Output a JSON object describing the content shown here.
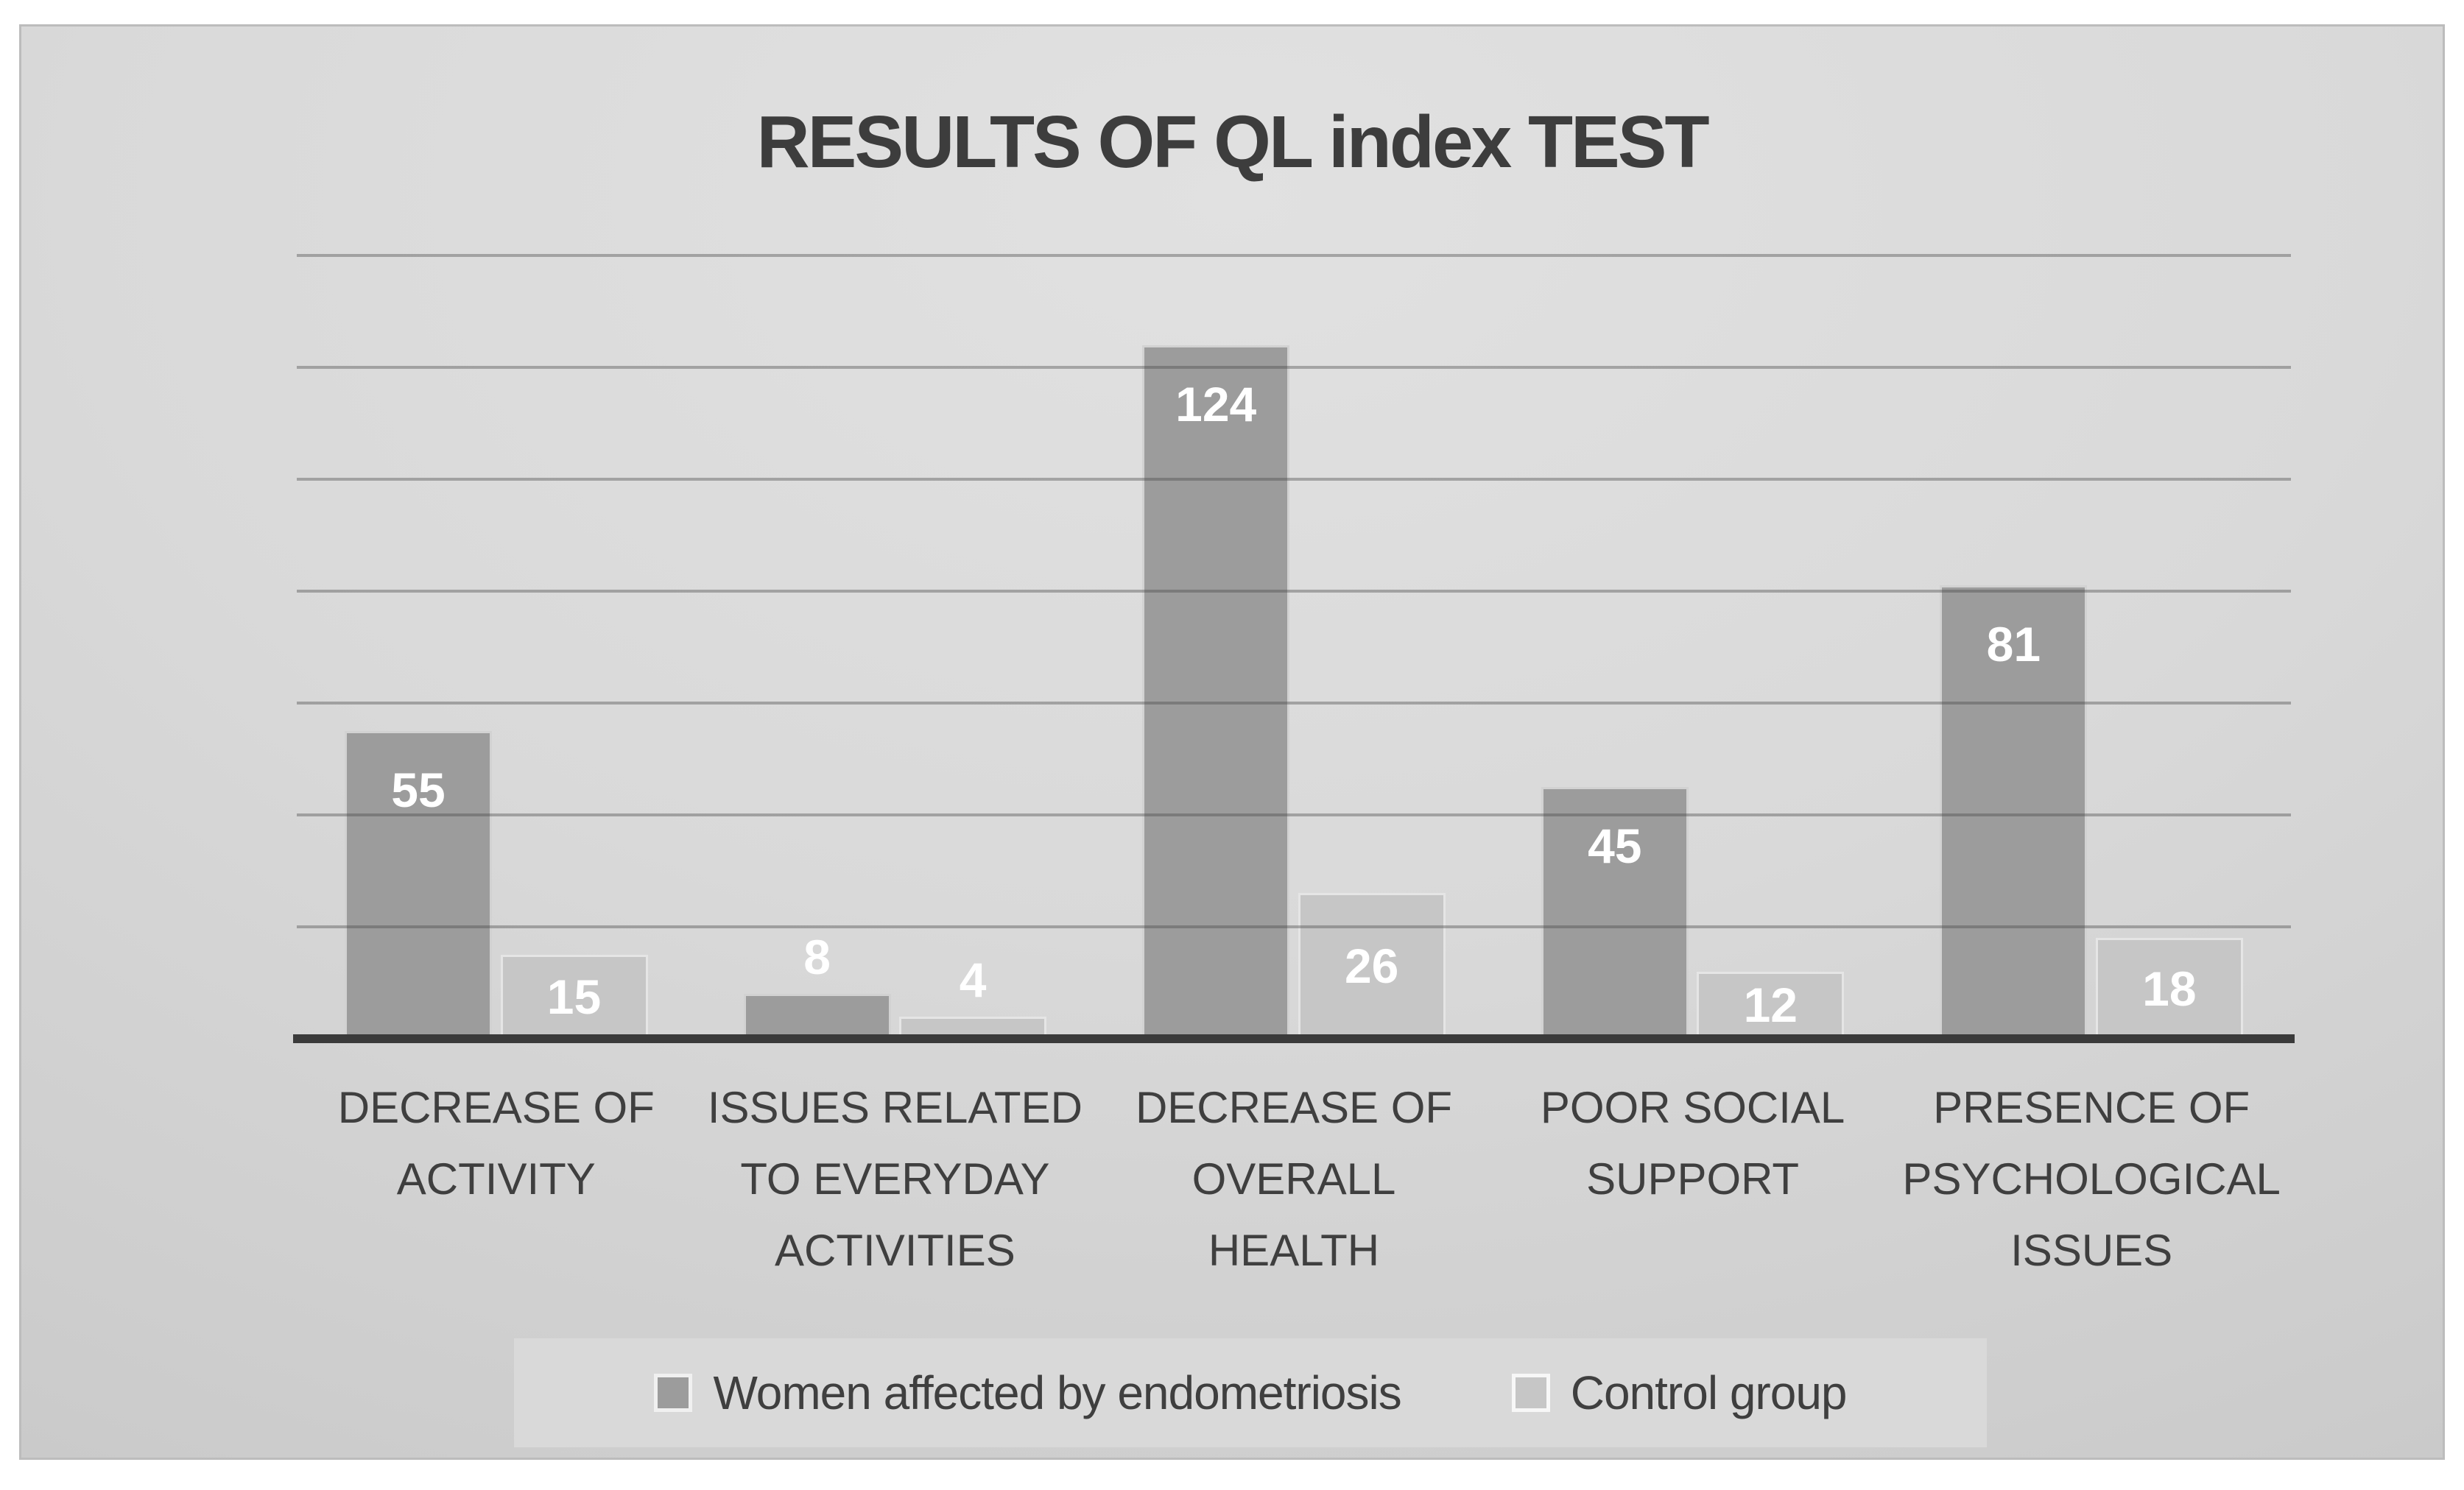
{
  "title": "RESULTS OF QL index TEST",
  "colors": {
    "series_women": "#9c9c9c",
    "series_control": "#c6c6c6",
    "axis_line": "#3a3a3a",
    "gridline": "rgba(75,75,75,0.40)",
    "text": "#3f3f3f",
    "data_label_text": "#ffffff",
    "legend_box_fill": "#d9d9d9",
    "slide_border": "#bcbcbc"
  },
  "chart_data": {
    "type": "bar",
    "title": "RESULTS OF QL index TEST",
    "categories": [
      "DECREASE OF\nACTIVITY",
      "ISSUES RELATED\nTO EVERYDAY\nACTIVITIES",
      "DECREASE OF\nOVERALL\nHEALTH",
      "POOR SOCIAL\nSUPPORT",
      "PRESENCE OF\nPSYCHOLOGICAL\nISSUES"
    ],
    "series": [
      {
        "name": "Women affected by endometriosis",
        "color": "#9c9c9c",
        "values": [
          55,
          8,
          124,
          45,
          81
        ]
      },
      {
        "name": "Control group",
        "color": "#c6c6c6",
        "values": [
          15,
          4,
          26,
          12,
          18
        ]
      }
    ],
    "xlabel": "",
    "ylabel": "",
    "ylim": [
      0,
      140
    ],
    "gridline_step": 20,
    "grid": true,
    "y_tick_labels_visible": false,
    "data_labels": true,
    "data_label_position": "inside-end (outside-end when bar too short)",
    "legend_position": "bottom"
  }
}
